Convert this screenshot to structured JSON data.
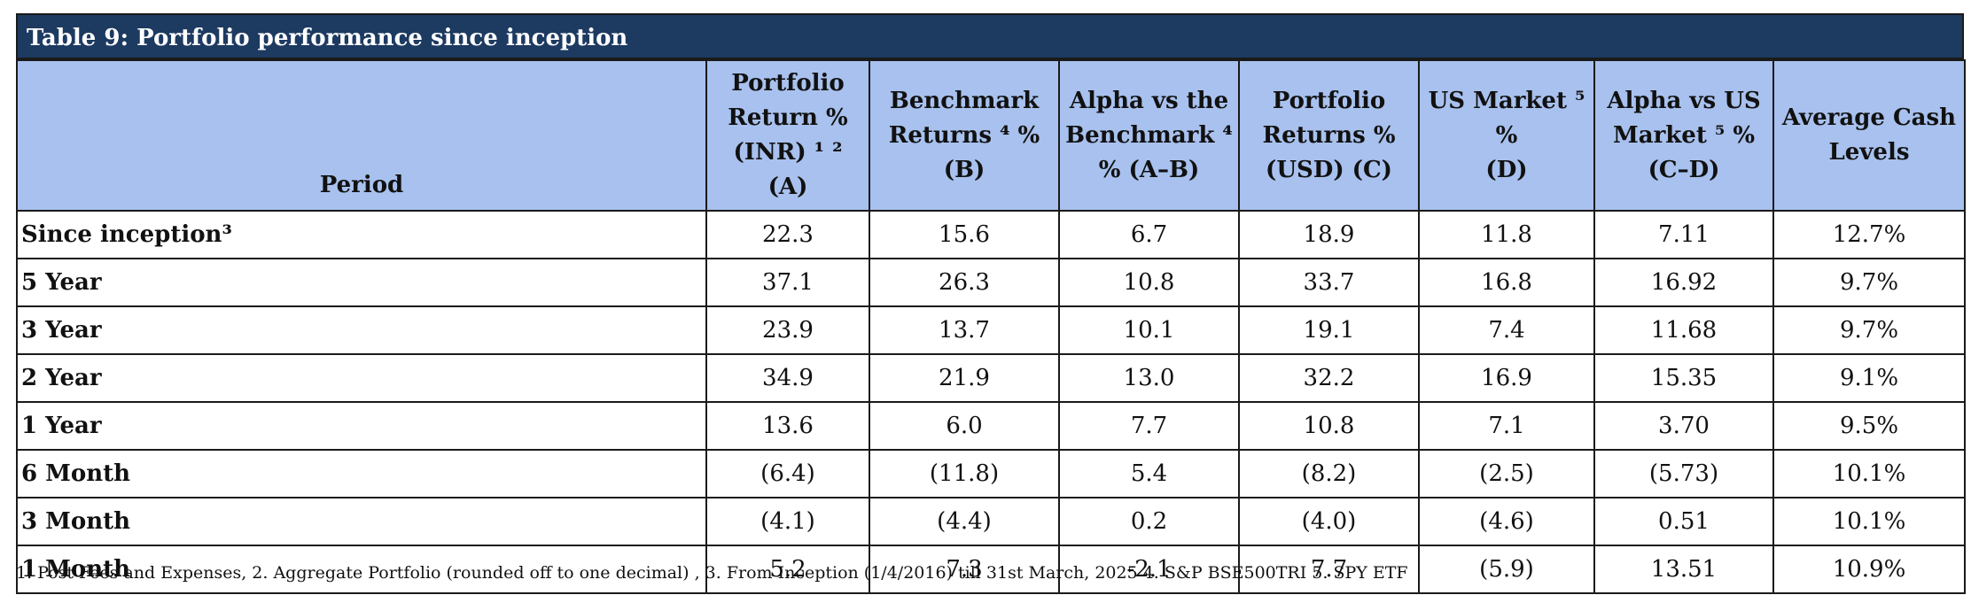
{
  "table": {
    "title": "Table 9: Portfolio performance since inception",
    "headers": [
      [
        "Period"
      ],
      [
        "Portfolio",
        "Return %",
        "(INR) ¹ ² (A)"
      ],
      [
        "Benchmark",
        "Returns ⁴ % (B)"
      ],
      [
        "Alpha vs the",
        "Benchmark ⁴",
        "% (A–B)"
      ],
      [
        "Portfolio",
        "Returns %",
        "(USD) (C)"
      ],
      [
        "US Market ⁵ %",
        "(D)"
      ],
      [
        "Alpha vs US",
        "Market ⁵ %",
        "(C–D)"
      ],
      [
        "Average Cash",
        "Levels"
      ]
    ],
    "rows": [
      {
        "period": "Since inception³",
        "values": [
          "22.3",
          "15.6",
          "6.7",
          "18.9",
          "11.8",
          "7.11",
          "12.7%"
        ]
      },
      {
        "period": "5 Year",
        "values": [
          "37.1",
          "26.3",
          "10.8",
          "33.7",
          "16.8",
          "16.92",
          "9.7%"
        ]
      },
      {
        "period": "3 Year",
        "values": [
          "23.9",
          "13.7",
          "10.1",
          "19.1",
          "7.4",
          "11.68",
          "9.7%"
        ]
      },
      {
        "period": "2 Year",
        "values": [
          "34.9",
          "21.9",
          "13.0",
          "32.2",
          "16.9",
          "15.35",
          "9.1%"
        ]
      },
      {
        "period": "1 Year",
        "values": [
          "13.6",
          "6.0",
          "7.7",
          "10.8",
          "7.1",
          "3.70",
          "9.5%"
        ]
      },
      {
        "period": "6 Month",
        "values": [
          "(6.4)",
          "(11.8)",
          "5.4",
          "(8.2)",
          "(2.5)",
          "(5.73)",
          "10.1%"
        ]
      },
      {
        "period": "3 Month",
        "values": [
          "(4.1)",
          "(4.4)",
          "0.2",
          "(4.0)",
          "(4.6)",
          "0.51",
          "10.1%"
        ]
      },
      {
        "period": "1 Month",
        "values": [
          "5.2",
          "7.3",
          "-2.1",
          "7.7",
          "(5.9)",
          "13.51",
          "10.9%"
        ]
      }
    ]
  },
  "footnote": "1. Post Fees and Expenses, 2. Aggregate Portfolio (rounded off to one decimal) , 3. From Inception (1/4/2016) till 31st March, 2025  4. S&P BSE500TRI 5. SPY ETF",
  "colors": {
    "title_bg": "#1d3a61",
    "header_bg": "#a8c1ee"
  }
}
